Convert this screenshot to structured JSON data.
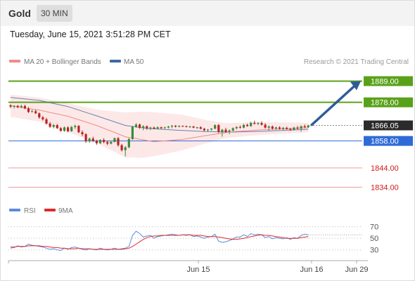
{
  "header": {
    "instrument": "Gold",
    "timeframe": "30 MIN"
  },
  "timestamp": "Tuesday, June 15, 2021 3:51:28 PM CET",
  "legend": {
    "ma20_bb": "MA 20 + Bollinger Bands",
    "ma50": "MA 50",
    "credit": "Research © 2021 Trading Central"
  },
  "rsi_legend": {
    "rsi": "RSI",
    "ma9": "9MA"
  },
  "colors": {
    "ma20": "#f28b8b",
    "ma50": "#3d6aa3",
    "band_fill": "#fde4e4",
    "up": "#3a8a3a",
    "down": "#b82424",
    "resistance": "#5aa11a",
    "pivot": "#2f6bd8",
    "support": "#f49a9a",
    "arrow": "#2d5c9a",
    "rsi": "#5b8be0",
    "rsi_ma": "#e12a2a"
  },
  "chart_data": [
    {
      "type": "candlestick",
      "title": "Gold 30 MIN",
      "y_range": [
        1828,
        1895
      ],
      "x_labels": [
        "Jun 15",
        "Jun 16",
        "Jun 29"
      ],
      "levels": [
        {
          "label": "1889.00",
          "value": 1889.0,
          "kind": "resistance"
        },
        {
          "label": "1878.00",
          "value": 1878.0,
          "kind": "resistance"
        },
        {
          "label": "1866.05",
          "value": 1866.05,
          "kind": "last"
        },
        {
          "label": "1858.00",
          "value": 1858.0,
          "kind": "pivot"
        },
        {
          "label": "1844.00",
          "value": 1844.0,
          "kind": "support"
        },
        {
          "label": "1834.00",
          "value": 1834.0,
          "kind": "support"
        }
      ],
      "candles": [
        [
          1876.5,
          1877.0,
          1875.0,
          1875.8
        ],
        [
          1875.8,
          1876.5,
          1874.8,
          1876.2
        ],
        [
          1876.2,
          1876.6,
          1875.0,
          1875.5
        ],
        [
          1875.5,
          1876.8,
          1875.0,
          1876.1
        ],
        [
          1876.1,
          1876.8,
          1874.5,
          1874.8
        ],
        [
          1874.8,
          1875.5,
          1872.5,
          1873.0
        ],
        [
          1873.0,
          1874.2,
          1872.8,
          1873.4
        ],
        [
          1873.4,
          1874.2,
          1872.0,
          1872.3
        ],
        [
          1872.3,
          1872.8,
          1869.5,
          1870.2
        ],
        [
          1870.2,
          1871.0,
          1868.5,
          1869.2
        ],
        [
          1869.2,
          1870.0,
          1866.5,
          1867.0
        ],
        [
          1867.0,
          1867.8,
          1864.8,
          1865.3
        ],
        [
          1865.3,
          1866.8,
          1864.5,
          1866.2
        ],
        [
          1866.2,
          1866.8,
          1864.2,
          1864.6
        ],
        [
          1864.6,
          1865.2,
          1862.8,
          1863.2
        ],
        [
          1863.2,
          1865.5,
          1862.8,
          1865.0
        ],
        [
          1865.0,
          1865.6,
          1862.5,
          1863.0
        ],
        [
          1863.0,
          1865.8,
          1862.8,
          1865.2
        ],
        [
          1865.2,
          1866.5,
          1864.2,
          1865.8
        ],
        [
          1865.8,
          1866.2,
          1862.0,
          1862.5
        ],
        [
          1862.5,
          1863.5,
          1860.5,
          1861.5
        ],
        [
          1861.5,
          1862.0,
          1857.0,
          1857.8
        ],
        [
          1857.8,
          1859.8,
          1857.0,
          1859.2
        ],
        [
          1859.2,
          1860.2,
          1857.5,
          1858.0
        ],
        [
          1858.0,
          1858.6,
          1856.0,
          1856.8
        ],
        [
          1856.8,
          1858.9,
          1856.5,
          1858.5
        ],
        [
          1858.5,
          1859.4,
          1856.8,
          1857.4
        ],
        [
          1857.4,
          1858.2,
          1855.8,
          1856.6
        ],
        [
          1856.6,
          1857.8,
          1856.2,
          1857.5
        ],
        [
          1857.5,
          1859.8,
          1857.2,
          1859.4
        ],
        [
          1859.4,
          1860.0,
          1855.0,
          1855.8
        ],
        [
          1855.8,
          1856.5,
          1852.5,
          1853.2
        ],
        [
          1853.2,
          1855.3,
          1850.0,
          1854.7
        ],
        [
          1854.7,
          1859.5,
          1854.2,
          1859.0
        ],
        [
          1859.0,
          1865.8,
          1858.5,
          1865.3
        ],
        [
          1865.3,
          1867.2,
          1864.8,
          1866.5
        ],
        [
          1866.5,
          1867.0,
          1864.2,
          1864.8
        ],
        [
          1864.8,
          1866.2,
          1863.5,
          1865.6
        ],
        [
          1865.6,
          1866.0,
          1863.8,
          1864.5
        ],
        [
          1864.5,
          1865.4,
          1863.6,
          1864.9
        ],
        [
          1864.9,
          1865.5,
          1864.0,
          1864.4
        ],
        [
          1864.4,
          1865.5,
          1864.0,
          1865.1
        ],
        [
          1865.1,
          1865.4,
          1864.2,
          1864.6
        ],
        [
          1864.6,
          1865.4,
          1864.3,
          1865.0
        ],
        [
          1865.0,
          1865.8,
          1864.4,
          1865.5
        ],
        [
          1865.5,
          1866.2,
          1864.6,
          1865.9
        ],
        [
          1865.9,
          1866.2,
          1865.0,
          1865.4
        ],
        [
          1865.4,
          1866.1,
          1865.0,
          1865.8
        ],
        [
          1865.8,
          1866.0,
          1865.2,
          1865.6
        ],
        [
          1865.6,
          1866.0,
          1865.0,
          1865.3
        ],
        [
          1865.3,
          1865.8,
          1864.8,
          1865.5
        ],
        [
          1865.5,
          1865.8,
          1864.6,
          1864.9
        ],
        [
          1864.9,
          1865.3,
          1864.2,
          1865.1
        ],
        [
          1865.1,
          1865.6,
          1864.0,
          1864.3
        ],
        [
          1864.3,
          1864.8,
          1863.0,
          1863.5
        ],
        [
          1863.5,
          1864.2,
          1862.8,
          1863.9
        ],
        [
          1863.9,
          1864.6,
          1863.3,
          1864.4
        ],
        [
          1864.4,
          1866.6,
          1864.0,
          1866.2
        ],
        [
          1866.2,
          1866.8,
          1862.0,
          1862.6
        ],
        [
          1862.6,
          1864.2,
          1860.2,
          1863.8
        ],
        [
          1863.8,
          1864.8,
          1862.2,
          1862.7
        ],
        [
          1862.7,
          1864.0,
          1861.5,
          1863.4
        ],
        [
          1863.4,
          1865.0,
          1863.0,
          1864.6
        ],
        [
          1864.6,
          1865.6,
          1864.0,
          1865.2
        ],
        [
          1865.2,
          1866.0,
          1864.4,
          1864.9
        ],
        [
          1864.9,
          1866.8,
          1864.5,
          1866.3
        ],
        [
          1866.3,
          1867.0,
          1865.4,
          1865.7
        ],
        [
          1865.7,
          1868.0,
          1865.3,
          1867.4
        ],
        [
          1867.4,
          1868.5,
          1866.5,
          1866.9
        ],
        [
          1866.9,
          1867.8,
          1866.2,
          1867.3
        ],
        [
          1867.3,
          1868.2,
          1866.0,
          1866.4
        ],
        [
          1866.4,
          1867.2,
          1864.4,
          1864.9
        ],
        [
          1864.9,
          1866.0,
          1863.4,
          1865.5
        ],
        [
          1865.5,
          1866.0,
          1863.8,
          1864.4
        ],
        [
          1864.4,
          1865.4,
          1863.8,
          1865.0
        ],
        [
          1865.0,
          1865.6,
          1863.8,
          1864.3
        ],
        [
          1864.3,
          1865.2,
          1863.6,
          1864.8
        ],
        [
          1864.8,
          1865.4,
          1863.8,
          1864.2
        ],
        [
          1864.2,
          1864.8,
          1863.2,
          1863.8
        ],
        [
          1863.8,
          1865.4,
          1863.4,
          1864.9
        ],
        [
          1864.9,
          1865.8,
          1863.8,
          1864.4
        ],
        [
          1864.4,
          1866.0,
          1862.8,
          1865.6
        ],
        [
          1865.6,
          1866.5,
          1864.6,
          1865.1
        ],
        [
          1865.1,
          1866.4,
          1864.8,
          1866.05
        ]
      ],
      "ma20": [
        [
          0,
          1876.2
        ],
        [
          8,
          1874.0
        ],
        [
          16,
          1870.8
        ],
        [
          24,
          1866.0
        ],
        [
          32,
          1860.2
        ],
        [
          40,
          1857.6
        ],
        [
          48,
          1858.8
        ],
        [
          56,
          1861.2
        ],
        [
          62,
          1862.8
        ],
        [
          70,
          1863.8
        ],
        [
          83,
          1864.8
        ]
      ],
      "ma50": [
        [
          0,
          1880.5
        ],
        [
          8,
          1879.0
        ],
        [
          16,
          1875.8
        ],
        [
          24,
          1871.0
        ],
        [
          32,
          1866.0
        ],
        [
          38,
          1864.5
        ],
        [
          46,
          1863.6
        ],
        [
          54,
          1862.9
        ],
        [
          62,
          1862.6
        ],
        [
          70,
          1863.0
        ],
        [
          83,
          1864.0
        ]
      ],
      "bb_upper": [
        [
          0,
          1882.0
        ],
        [
          8,
          1880.5
        ],
        [
          16,
          1877.5
        ],
        [
          24,
          1874.2
        ],
        [
          32,
          1872.8
        ],
        [
          37,
          1873.2
        ],
        [
          42,
          1872.6
        ],
        [
          48,
          1871.6
        ],
        [
          54,
          1869.0
        ],
        [
          60,
          1867.2
        ],
        [
          70,
          1867.8
        ],
        [
          83,
          1867.4
        ]
      ],
      "bb_lower": [
        [
          0,
          1870.5
        ],
        [
          8,
          1868.0
        ],
        [
          16,
          1862.5
        ],
        [
          24,
          1856.8
        ],
        [
          32,
          1849.5
        ],
        [
          37,
          1849.2
        ],
        [
          42,
          1850.8
        ],
        [
          48,
          1853.2
        ],
        [
          54,
          1856.5
        ],
        [
          60,
          1859.5
        ],
        [
          70,
          1861.2
        ],
        [
          83,
          1862.4
        ]
      ],
      "forecast_path": [
        1866.05,
        1889.0
      ]
    },
    {
      "type": "line",
      "title": "RSI",
      "y_range": [
        14,
        84
      ],
      "y_ticks": [
        70,
        50,
        30
      ],
      "series": [
        {
          "name": "RSI",
          "values": [
            33,
            34,
            37,
            35,
            36,
            40,
            38,
            37,
            36,
            35,
            33,
            31,
            32,
            30,
            29,
            33,
            31,
            34,
            35,
            33,
            31,
            30,
            32,
            31,
            30,
            33,
            31,
            30,
            31,
            33,
            31,
            32,
            33,
            36,
            55,
            62,
            58,
            52,
            54,
            55,
            50,
            53,
            54,
            55,
            56,
            57,
            56,
            55,
            56,
            55,
            56,
            53,
            54,
            52,
            50,
            52,
            53,
            57,
            45,
            43,
            44,
            46,
            49,
            52,
            52,
            56,
            53,
            58,
            56,
            57,
            56,
            51,
            53,
            49,
            51,
            50,
            49,
            51,
            48,
            51,
            50,
            55,
            57,
            56
          ]
        },
        {
          "name": "9MA",
          "values": [
            35,
            35,
            36,
            36,
            36,
            37,
            37,
            37,
            37,
            36,
            36,
            35,
            34,
            34,
            33,
            33,
            32,
            32,
            32,
            33,
            32,
            32,
            32,
            31,
            31,
            31,
            31,
            31,
            31,
            31,
            31,
            31,
            32,
            33,
            36,
            40,
            44,
            48,
            51,
            53,
            54,
            54,
            55,
            55,
            55,
            55,
            55,
            55,
            56,
            56,
            56,
            55,
            55,
            55,
            54,
            53,
            53,
            53,
            52,
            51,
            50,
            49,
            48,
            48,
            49,
            50,
            51,
            53,
            54,
            55,
            56,
            55,
            55,
            54,
            53,
            52,
            51,
            50,
            50,
            50,
            50,
            51,
            52,
            53
          ]
        }
      ]
    }
  ]
}
